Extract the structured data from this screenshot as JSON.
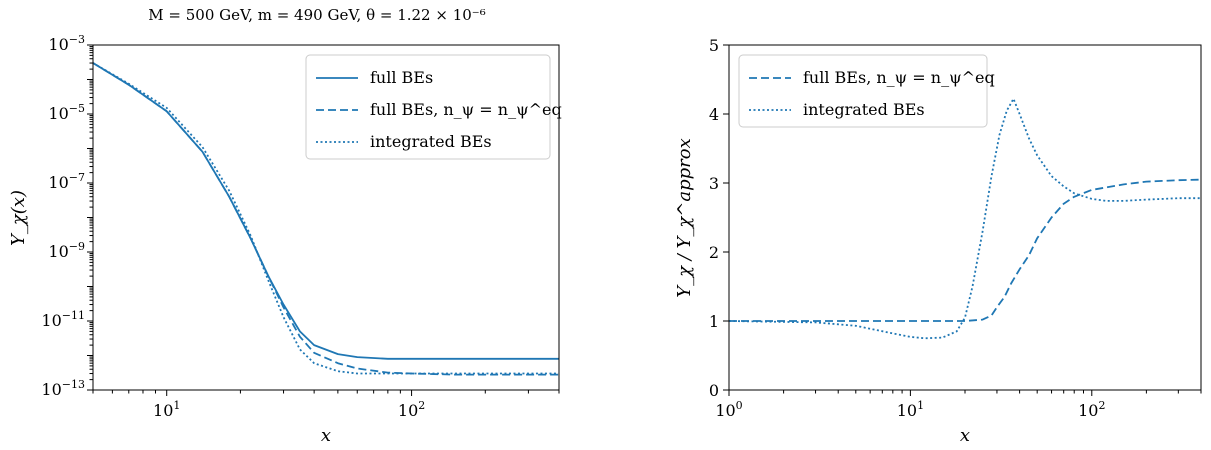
{
  "colors": {
    "series": "#1f77b4"
  },
  "chart_data": [
    {
      "type": "line",
      "title": "M = 500 GeV,  m = 490 GeV,  θ = 1.22 × 10⁻⁶",
      "xlabel": "x",
      "ylabel": "Y_χ(x)",
      "xscale": "log",
      "yscale": "log",
      "xlim": [
        5,
        400
      ],
      "ylim": [
        1e-13,
        0.001
      ],
      "xticks": [
        {
          "value": 10,
          "base": "10",
          "exp": "1"
        },
        {
          "value": 100,
          "base": "10",
          "exp": "2"
        }
      ],
      "yticks": [
        {
          "value": 0.001,
          "base": "10",
          "exp": "−3"
        },
        {
          "value": 1e-05,
          "base": "10",
          "exp": "−5"
        },
        {
          "value": 1e-07,
          "base": "10",
          "exp": "−7"
        },
        {
          "value": 1e-09,
          "base": "10",
          "exp": "−9"
        },
        {
          "value": 1e-11,
          "base": "10",
          "exp": "−11"
        },
        {
          "value": 1e-13,
          "base": "10",
          "exp": "−13"
        }
      ],
      "legend_position": "top-right",
      "series": [
        {
          "name": "full BEs",
          "style": "solid",
          "x": [
            5,
            7,
            10,
            14,
            18,
            22,
            26,
            30,
            35,
            40,
            50,
            60,
            80,
            100,
            150,
            200,
            300,
            400
          ],
          "y": [
            0.0003,
            7e-05,
            1.2e-05,
            8e-07,
            4e-08,
            2.5e-09,
            2e-10,
            3e-11,
            5e-12,
            2e-12,
            1.1e-12,
            9e-13,
            8e-13,
            8e-13,
            8e-13,
            8e-13,
            8e-13,
            8e-13
          ]
        },
        {
          "name": "full BEs, n_ψ = n_ψ^eq",
          "style": "dashed",
          "x": [
            5,
            7,
            10,
            14,
            18,
            22,
            26,
            30,
            35,
            40,
            50,
            60,
            80,
            100,
            150,
            200,
            300,
            400
          ],
          "y": [
            0.0003,
            7e-05,
            1.2e-05,
            8e-07,
            4e-08,
            2.5e-09,
            2e-10,
            2.5e-11,
            3.5e-12,
            1.2e-12,
            6e-13,
            4.2e-13,
            3.2e-13,
            3e-13,
            2.8e-13,
            2.8e-13,
            2.8e-13,
            2.8e-13
          ]
        },
        {
          "name": "integrated BEs",
          "style": "dotted",
          "x": [
            5,
            7,
            10,
            14,
            18,
            22,
            26,
            30,
            35,
            40,
            50,
            60,
            80,
            100,
            150,
            200,
            300,
            400
          ],
          "y": [
            0.0003,
            7.5e-05,
            1.5e-05,
            1.1e-06,
            6e-08,
            3e-09,
            1.5e-10,
            1.3e-11,
            1.5e-12,
            6e-13,
            3.5e-13,
            3e-13,
            3e-13,
            3e-13,
            3e-13,
            3e-13,
            3e-13,
            3e-13
          ]
        }
      ]
    },
    {
      "type": "line",
      "title": "",
      "xlabel": "x",
      "ylabel": "Y_χ / Y_χ^approx",
      "xscale": "log",
      "yscale": "linear",
      "xlim": [
        1,
        400
      ],
      "ylim": [
        0,
        5
      ],
      "xticks": [
        {
          "value": 1,
          "base": "10",
          "exp": "0"
        },
        {
          "value": 10,
          "base": "10",
          "exp": "1"
        },
        {
          "value": 100,
          "base": "10",
          "exp": "2"
        }
      ],
      "yticks": [
        {
          "value": 0,
          "label": "0"
        },
        {
          "value": 1,
          "label": "1"
        },
        {
          "value": 2,
          "label": "2"
        },
        {
          "value": 3,
          "label": "3"
        },
        {
          "value": 4,
          "label": "4"
        },
        {
          "value": 5,
          "label": "5"
        }
      ],
      "legend_position": "top-left",
      "series": [
        {
          "name": "full BEs, n_ψ = n_ψ^eq",
          "style": "dashed",
          "x": [
            1,
            5,
            10,
            15,
            20,
            25,
            28,
            30,
            33,
            36,
            40,
            45,
            50,
            60,
            70,
            80,
            100,
            150,
            200,
            300,
            400
          ],
          "y": [
            1.0,
            1.0,
            1.0,
            1.0,
            1.0,
            1.02,
            1.08,
            1.2,
            1.35,
            1.55,
            1.75,
            1.95,
            2.2,
            2.5,
            2.7,
            2.8,
            2.9,
            2.98,
            3.02,
            3.04,
            3.05
          ]
        },
        {
          "name": "integrated BEs",
          "style": "dotted",
          "x": [
            1,
            3,
            5,
            8,
            10,
            12,
            15,
            18,
            20,
            22,
            25,
            28,
            31,
            34,
            37,
            40,
            45,
            50,
            60,
            70,
            80,
            100,
            120,
            150,
            200,
            300,
            400
          ],
          "y": [
            1.0,
            0.98,
            0.93,
            0.82,
            0.77,
            0.75,
            0.76,
            0.85,
            1.05,
            1.5,
            2.3,
            3.1,
            3.7,
            4.05,
            4.22,
            4.0,
            3.65,
            3.4,
            3.1,
            2.95,
            2.85,
            2.77,
            2.74,
            2.74,
            2.76,
            2.78,
            2.78
          ]
        }
      ]
    }
  ]
}
